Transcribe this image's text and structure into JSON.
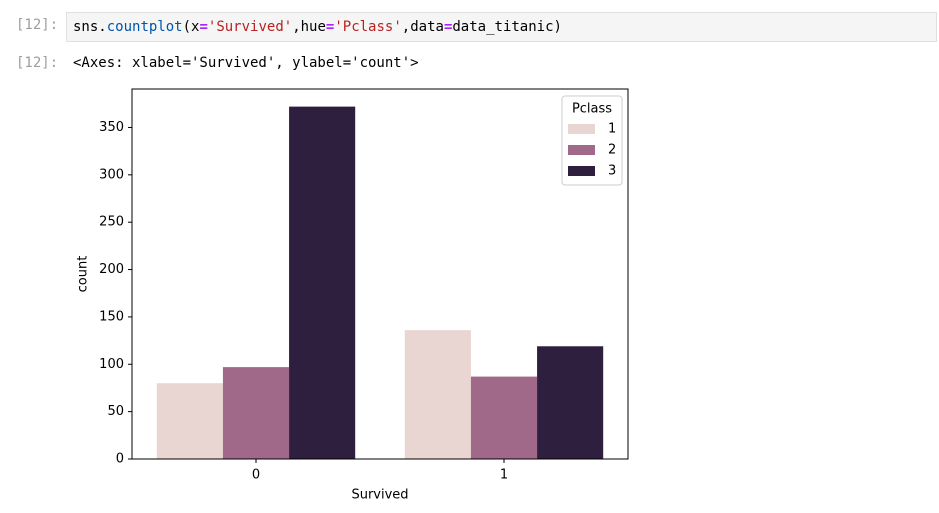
{
  "input": {
    "prompt": "[12]:",
    "code_tokens": [
      "sns",
      ".",
      "countplot",
      "(x",
      "=",
      "'Survived'",
      ",hue",
      "=",
      "'Pclass'",
      ",data",
      "=",
      "data_titanic)"
    ]
  },
  "output": {
    "prompt": "[12]:",
    "text": "<Axes: xlabel='Survived', ylabel='count'>"
  },
  "chart_data": {
    "type": "bar",
    "xlabel": "Survived",
    "ylabel": "count",
    "categories": [
      "0",
      "1"
    ],
    "series": [
      {
        "name": "1",
        "color": "#e9d5d1",
        "values": [
          80,
          136
        ]
      },
      {
        "name": "2",
        "color": "#a0698a",
        "values": [
          97,
          87
        ]
      },
      {
        "name": "3",
        "color": "#2d1f3d",
        "values": [
          372,
          119
        ]
      }
    ],
    "legend_title": "Pclass",
    "legend": "upper right",
    "ylim": [
      0,
      390.6
    ],
    "yticks": [
      0,
      50,
      100,
      150,
      200,
      250,
      300,
      350
    ],
    "grid": false
  }
}
